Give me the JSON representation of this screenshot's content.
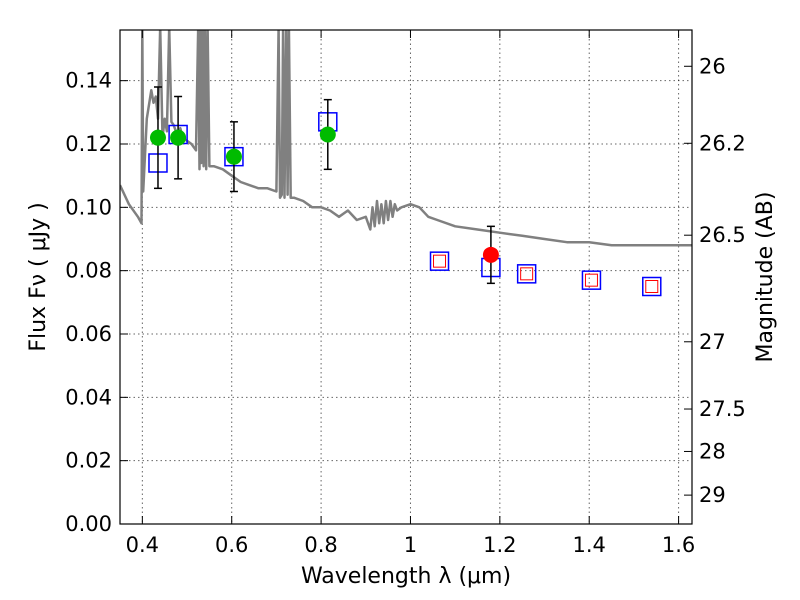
{
  "chart_data": {
    "type": "scatter",
    "title": "",
    "xlabel": "Wavelength  λ (μm)",
    "ylabel": "Flux  Fν  ( μJy )",
    "ylabel_right": "Magnitude (AB)",
    "xlim": [
      0.35,
      1.63
    ],
    "ylim": [
      0.0,
      0.156
    ],
    "grid": true,
    "x_ticks": [
      0.4,
      0.6,
      0.8,
      1.0,
      1.2,
      1.4,
      1.6
    ],
    "x_tick_labels": [
      "0.4",
      "0.6",
      "0.8",
      "1",
      "1.2",
      "1.4",
      "1.6"
    ],
    "y_ticks": [
      0.0,
      0.02,
      0.04,
      0.06,
      0.08,
      0.1,
      0.12,
      0.14
    ],
    "y_tick_labels": [
      "0.00",
      "0.02",
      "0.04",
      "0.06",
      "0.08",
      "0.10",
      "0.12",
      "0.14"
    ],
    "right_ticks": [
      {
        "mag": 26,
        "label": "26"
      },
      {
        "mag": 26.2,
        "label": "26.2"
      },
      {
        "mag": 26.5,
        "label": "26.5"
      },
      {
        "mag": 27,
        "label": "27"
      },
      {
        "mag": 27.5,
        "label": "27.5"
      },
      {
        "mag": 28,
        "label": "28"
      },
      {
        "mag": 29,
        "label": "29"
      }
    ],
    "series": [
      {
        "style": "model-spectrum",
        "color": "#808080",
        "x": [
          0.35,
          0.37,
          0.39,
          0.398,
          0.4,
          0.402,
          0.41,
          0.42,
          0.425,
          0.43,
          0.435,
          0.44,
          0.445,
          0.45,
          0.455,
          0.46,
          0.465,
          0.47,
          0.475,
          0.48,
          0.485,
          0.49,
          0.5,
          0.51,
          0.52,
          0.525,
          0.528,
          0.53,
          0.532,
          0.535,
          0.537,
          0.54,
          0.543,
          0.546,
          0.55,
          0.56,
          0.58,
          0.6,
          0.62,
          0.64,
          0.66,
          0.68,
          0.7,
          0.705,
          0.708,
          0.712,
          0.715,
          0.718,
          0.722,
          0.725,
          0.728,
          0.732,
          0.74,
          0.76,
          0.78,
          0.8,
          0.82,
          0.84,
          0.86,
          0.88,
          0.9,
          0.91,
          0.915,
          0.92,
          0.925,
          0.93,
          0.935,
          0.94,
          0.945,
          0.95,
          0.955,
          0.96,
          0.965,
          0.97,
          0.98,
          1.0,
          1.02,
          1.04,
          1.06,
          1.1,
          1.15,
          1.2,
          1.25,
          1.3,
          1.35,
          1.4,
          1.45,
          1.5,
          1.55,
          1.6,
          1.63
        ],
        "y": [
          0.107,
          0.101,
          0.097,
          0.095,
          0.157,
          0.105,
          0.128,
          0.137,
          0.133,
          0.135,
          0.128,
          0.157,
          0.122,
          0.128,
          0.124,
          0.157,
          0.127,
          0.126,
          0.124,
          0.123,
          0.125,
          0.122,
          0.121,
          0.12,
          0.118,
          0.157,
          0.112,
          0.157,
          0.114,
          0.157,
          0.113,
          0.157,
          0.112,
          0.157,
          0.113,
          0.113,
          0.112,
          0.11,
          0.108,
          0.107,
          0.106,
          0.106,
          0.105,
          0.157,
          0.103,
          0.104,
          0.157,
          0.103,
          0.157,
          0.104,
          0.157,
          0.103,
          0.103,
          0.102,
          0.1,
          0.1,
          0.099,
          0.097,
          0.099,
          0.096,
          0.097,
          0.093,
          0.1,
          0.094,
          0.102,
          0.095,
          0.101,
          0.095,
          0.102,
          0.096,
          0.102,
          0.097,
          0.101,
          0.099,
          0.1,
          0.101,
          0.1,
          0.097,
          0.096,
          0.094,
          0.093,
          0.092,
          0.091,
          0.09,
          0.089,
          0.089,
          0.088,
          0.088,
          0.088,
          0.088,
          0.088
        ]
      },
      {
        "style": "blue-squares",
        "color": "#0000ff",
        "x": [
          0.435,
          0.48,
          0.605,
          0.815,
          1.065,
          1.18,
          1.26,
          1.405,
          1.54
        ],
        "y": [
          0.114,
          0.123,
          0.116,
          0.127,
          0.083,
          0.081,
          0.079,
          0.077,
          0.075
        ]
      },
      {
        "style": "red-open-squares",
        "color": "#ff0000",
        "x": [
          1.065,
          1.26,
          1.405,
          1.54
        ],
        "y": [
          0.083,
          0.079,
          0.077,
          0.075
        ]
      },
      {
        "style": "green-points-errorbars",
        "color": "#00bb00",
        "x": [
          0.435,
          0.48,
          0.605,
          0.815
        ],
        "y": [
          0.122,
          0.122,
          0.116,
          0.123
        ],
        "err": [
          0.016,
          0.013,
          0.011,
          0.011
        ]
      },
      {
        "style": "red-point-errorbar",
        "color": "#ff0000",
        "x": [
          1.18
        ],
        "y": [
          0.085
        ],
        "err": [
          0.009
        ]
      }
    ]
  }
}
